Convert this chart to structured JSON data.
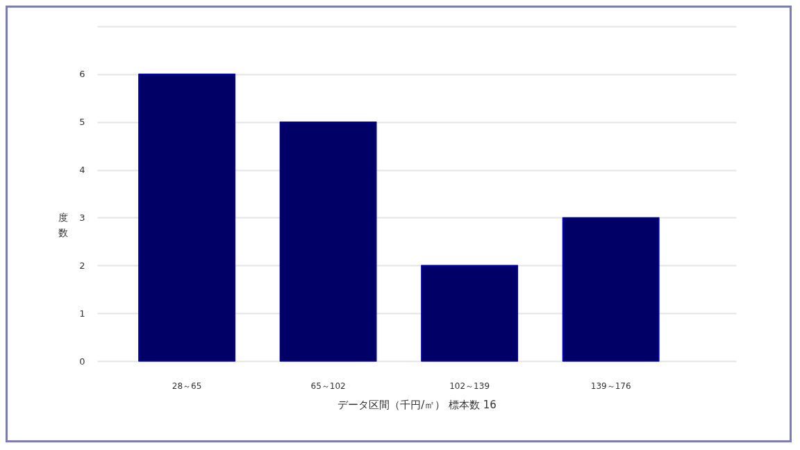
{
  "chart_data": {
    "type": "bar",
    "xlabel": "データ区間（千円/㎡） 標本数 16",
    "ylabel": "度数",
    "categories": [
      "28～65",
      "65～102",
      "102～139",
      "139～176"
    ],
    "series": [
      {
        "color": "#000066",
        "values": [
          6,
          5,
          2,
          3
        ]
      }
    ],
    "ylim": [
      0,
      7
    ],
    "yticks": [
      0,
      1,
      2,
      3,
      4,
      5,
      6,
      {
        "value": 7,
        "label": null
      }
    ],
    "grid": "y"
  }
}
